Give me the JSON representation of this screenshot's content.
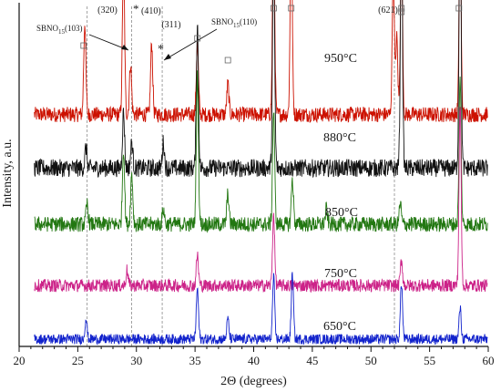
{
  "chart_data": {
    "type": "line",
    "title": "",
    "xlabel": "2Θ (degrees)",
    "ylabel": "Intensity, a.u.",
    "xlim": [
      20,
      60
    ],
    "xticks": [
      "20",
      "25",
      "30",
      "35",
      "40",
      "45",
      "50",
      "55",
      "60"
    ],
    "yticks": "none",
    "legend": "none (each trace labeled inline on the right)",
    "grid": false,
    "reference_lines_x": [
      25.8,
      29.6,
      32.2,
      52.0
    ],
    "series": [
      {
        "name": "950°C",
        "color": "#cc1100",
        "baseline": 79,
        "noise": 6,
        "peaks": [
          [
            25.6,
            36
          ],
          [
            28.9,
            63
          ],
          [
            29.5,
            20
          ],
          [
            31.3,
            28
          ],
          [
            35.2,
            28
          ],
          [
            37.8,
            12
          ],
          [
            41.7,
            80
          ],
          [
            43.2,
            75
          ],
          [
            51.9,
            55
          ],
          [
            52.2,
            30
          ],
          [
            52.6,
            68
          ],
          [
            57.6,
            70
          ]
        ]
      },
      {
        "name": "880°C",
        "color": "#111111",
        "baseline": 58,
        "noise": 7,
        "peaks": [
          [
            25.7,
            8
          ],
          [
            28.9,
            22
          ],
          [
            29.6,
            10
          ],
          [
            32.3,
            10
          ],
          [
            35.2,
            56
          ],
          [
            41.7,
            84
          ],
          [
            52.6,
            94
          ],
          [
            57.6,
            100
          ]
        ]
      },
      {
        "name": "850°C",
        "color": "#227711",
        "baseline": 36,
        "noise": 6,
        "peaks": [
          [
            25.8,
            8
          ],
          [
            28.9,
            30
          ],
          [
            29.6,
            20
          ],
          [
            32.3,
            6
          ],
          [
            35.2,
            58
          ],
          [
            37.8,
            12
          ],
          [
            41.7,
            44
          ],
          [
            43.3,
            18
          ],
          [
            46.2,
            6
          ],
          [
            52.5,
            8
          ],
          [
            57.6,
            56
          ]
        ]
      },
      {
        "name": "750°C",
        "color": "#cc2288",
        "baseline": 12,
        "noise": 5,
        "peaks": [
          [
            29.2,
            6
          ],
          [
            35.2,
            12
          ],
          [
            41.7,
            28
          ],
          [
            52.6,
            10
          ],
          [
            57.6,
            70
          ]
        ]
      },
      {
        "name": "650°C",
        "color": "#1122cc",
        "baseline": -9,
        "noise": 4,
        "peaks": [
          [
            25.7,
            8
          ],
          [
            35.2,
            20
          ],
          [
            37.8,
            8
          ],
          [
            41.7,
            24
          ],
          [
            43.3,
            26
          ],
          [
            52.6,
            22
          ],
          [
            57.6,
            12
          ]
        ]
      }
    ],
    "annotations": {
      "miller_320": "(320)",
      "miller_410": "(410)",
      "miller_311": "(311)",
      "miller_621": "(621)",
      "sbno_103_main": "SBNO",
      "sbno_103_sub": "15",
      "sbno_103_rest": "(103)",
      "sbno_110_main": "SBNO",
      "sbno_110_sub": "15",
      "sbno_110_rest": "(110)",
      "star_1": "*",
      "star_2": "*"
    },
    "square_markers_x": [
      25.5,
      35.2,
      37.8,
      41.7,
      43.2,
      52.6,
      57.5
    ]
  }
}
